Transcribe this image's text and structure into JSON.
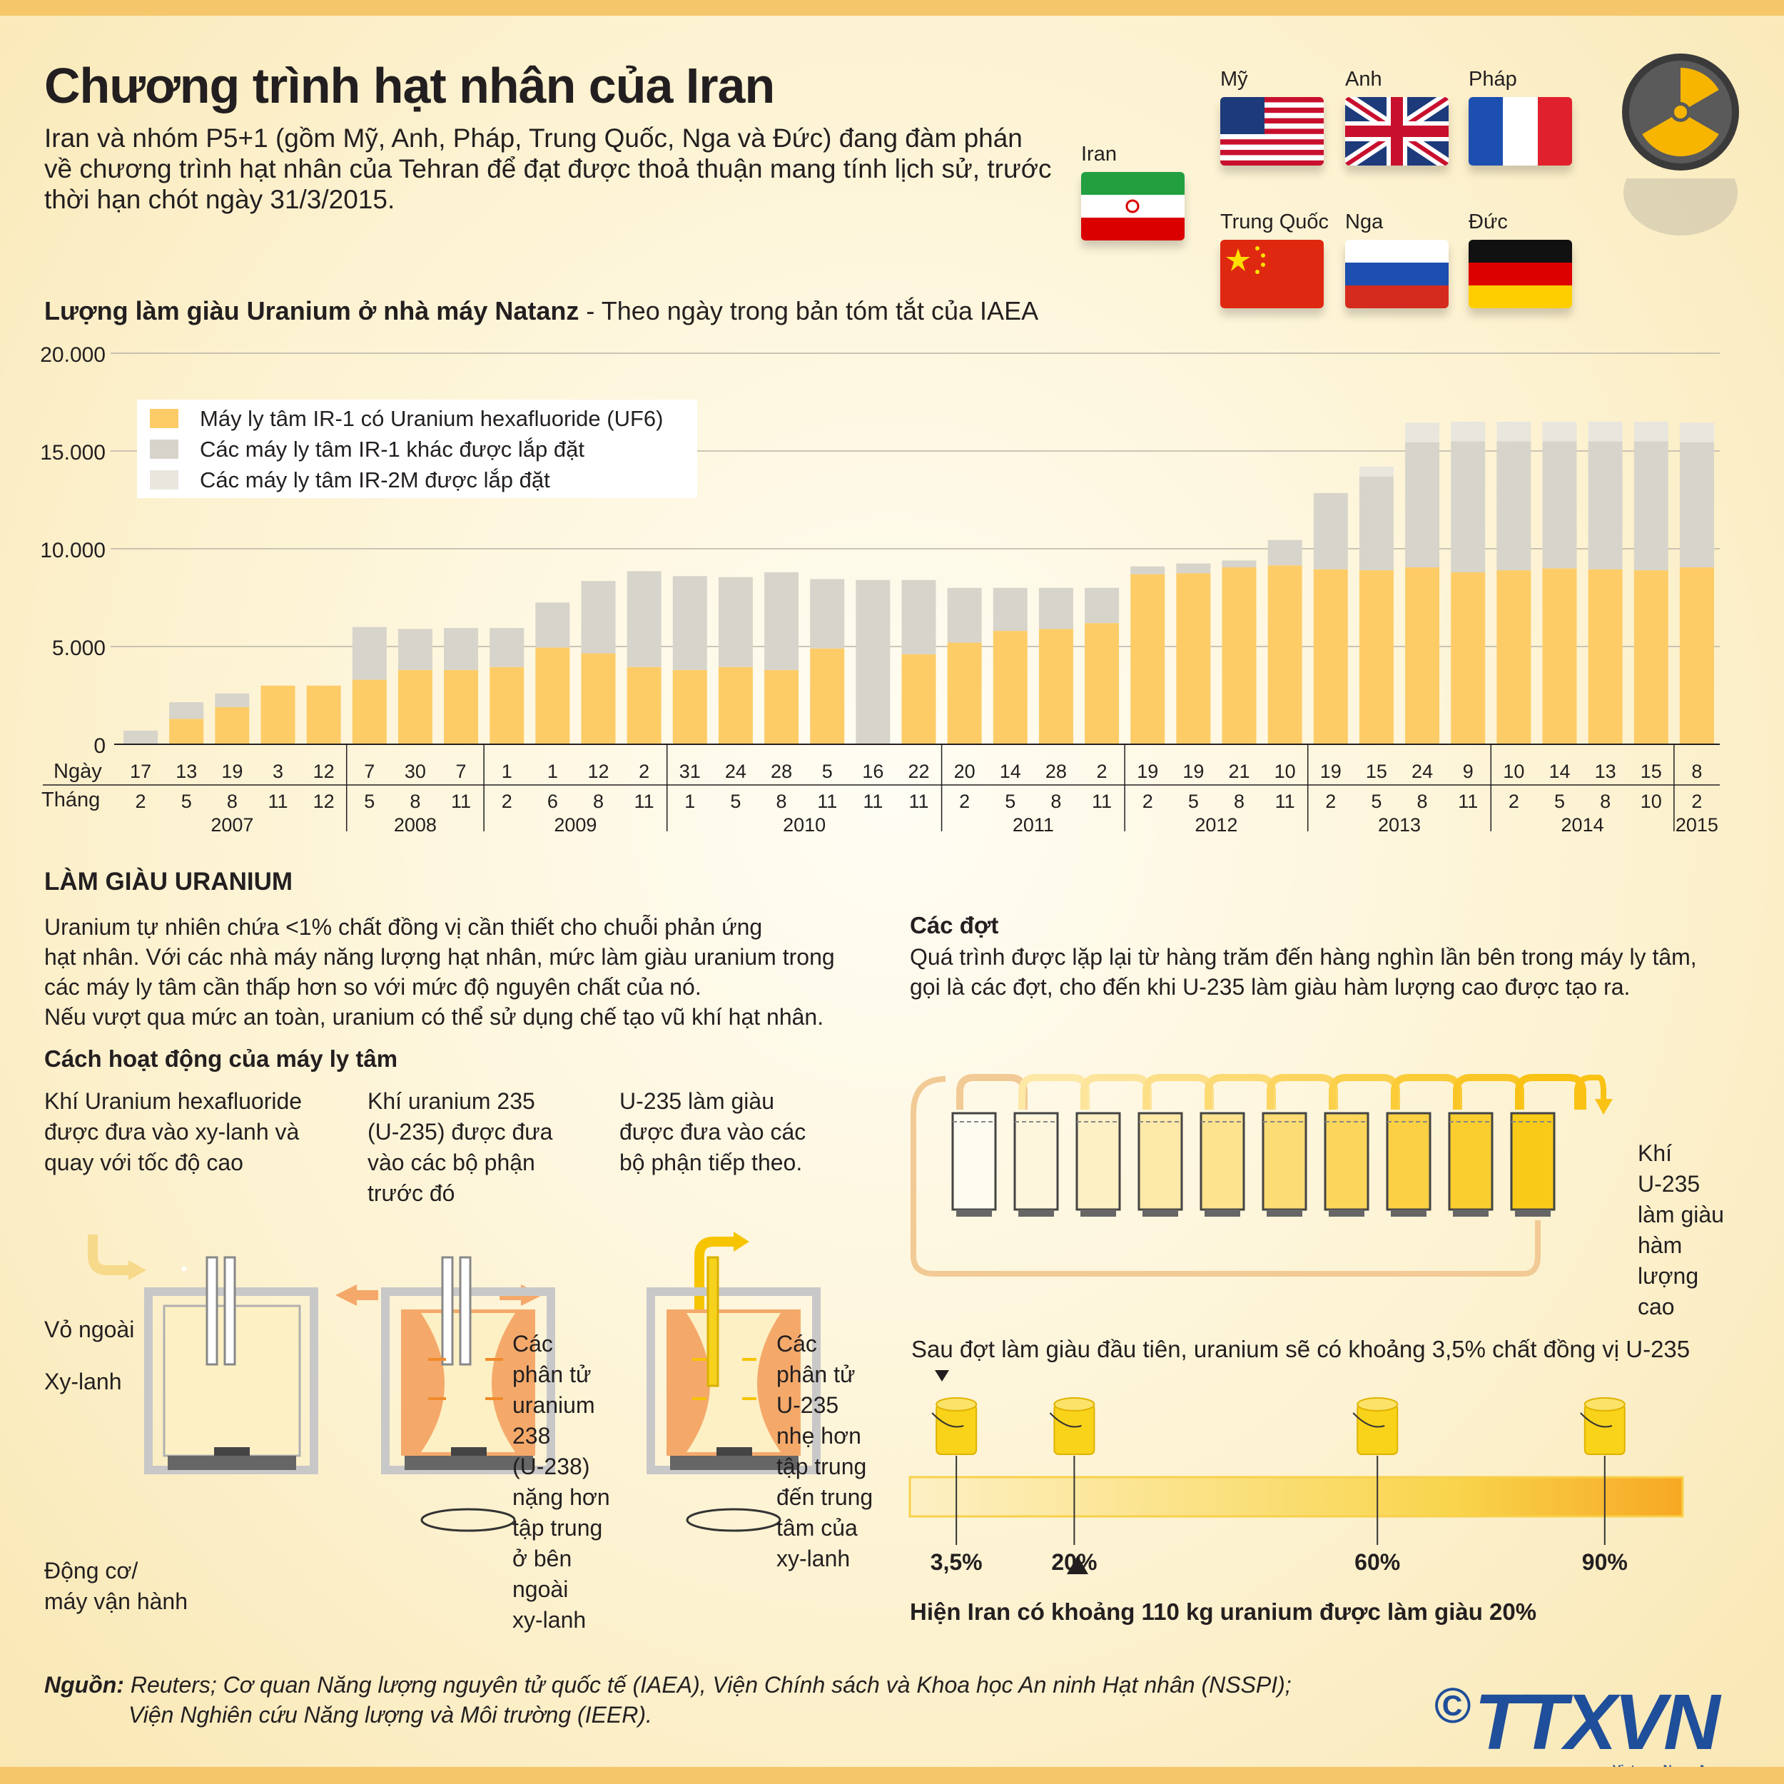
{
  "header": {
    "title": "Chương trình hạt nhân của Iran",
    "intro": "Iran và nhóm P5+1 (gồm Mỹ, Anh, Pháp, Trung Quốc, Nga và Đức) đang đàm phán về chương trình hạt nhân của Tehran để đạt được thoả thuận mang tính lịch sử, trước thời hạn chót ngày 31/3/2015."
  },
  "flags": {
    "iran": "Iran",
    "us": "Mỹ",
    "uk": "Anh",
    "france": "Pháp",
    "china": "Trung Quốc",
    "russia": "Nga",
    "germany": "Đức"
  },
  "chart_heading": {
    "bold": "Lượng làm giàu Uranium ở nhà máy Natanz",
    "rest": " - Theo ngày trong bản tóm tắt của IAEA"
  },
  "chart_data": {
    "type": "bar",
    "stacked": true,
    "ylim": [
      0,
      20000
    ],
    "yticks": [
      "20.000",
      "15.000",
      "10.000",
      "5.000",
      "0"
    ],
    "ytick_values": [
      20000,
      15000,
      10000,
      5000,
      0
    ],
    "row_labels": {
      "day": "Ngày",
      "month": "Tháng"
    },
    "days": [
      "17",
      "13",
      "19",
      "3",
      "12",
      "7",
      "30",
      "7",
      "1",
      "1",
      "12",
      "2",
      "31",
      "24",
      "28",
      "5",
      "16",
      "22",
      "20",
      "14",
      "28",
      "2",
      "19",
      "19",
      "21",
      "10",
      "19",
      "15",
      "24",
      "9",
      "10",
      "14",
      "13",
      "15",
      "8"
    ],
    "months": [
      "2",
      "5",
      "8",
      "11",
      "12",
      "5",
      "8",
      "11",
      "2",
      "6",
      "8",
      "11",
      "1",
      "5",
      "8",
      "11",
      "11",
      "11",
      "2",
      "5",
      "8",
      "11",
      "2",
      "5",
      "8",
      "11",
      "2",
      "5",
      "8",
      "11",
      "2",
      "5",
      "8",
      "10",
      "2"
    ],
    "years": [
      {
        "label": "2007",
        "count": 5
      },
      {
        "label": "2008",
        "count": 3
      },
      {
        "label": "2009",
        "count": 4
      },
      {
        "label": "2010",
        "count": 6
      },
      {
        "label": "2011",
        "count": 4
      },
      {
        "label": "2012",
        "count": 4
      },
      {
        "label": "2013",
        "count": 4
      },
      {
        "label": "2014",
        "count": 4
      },
      {
        "label": "2015",
        "count": 1
      }
    ],
    "series": [
      {
        "name": "Máy ly tâm IR-1 có Uranium hexafluoride (UF6)",
        "color": "#fdcc67",
        "values": [
          0,
          1300,
          1900,
          3000,
          3000,
          3300,
          3800,
          3800,
          3950,
          4950,
          4650,
          3950,
          3800,
          3950,
          3800,
          4900,
          0,
          4600,
          5200,
          5800,
          5900,
          6200,
          8700,
          8750,
          9050,
          9150,
          8950,
          8900,
          9050,
          8800,
          8900,
          9000,
          8950,
          8900,
          9050
        ]
      },
      {
        "name": "Các máy ly tâm IR-1 khác được lắp đặt",
        "color": "#d7d4cb",
        "values": [
          700,
          850,
          700,
          0,
          0,
          2700,
          2100,
          2150,
          2000,
          2300,
          3700,
          4900,
          4800,
          4600,
          5000,
          3550,
          8400,
          3800,
          2800,
          2200,
          2100,
          1800,
          400,
          500,
          350,
          1300,
          3900,
          4800,
          6400,
          6700,
          6600,
          6500,
          6550,
          6600,
          6400
        ]
      },
      {
        "name": "Các máy ly tâm IR-2M được lắp đặt",
        "color": "#e9e6de",
        "values": [
          0,
          0,
          0,
          0,
          0,
          0,
          0,
          0,
          0,
          0,
          0,
          0,
          0,
          0,
          0,
          0,
          0,
          0,
          0,
          0,
          0,
          0,
          0,
          0,
          0,
          0,
          0,
          500,
          1000,
          1000,
          1000,
          1000,
          1000,
          1000,
          1000
        ]
      }
    ]
  },
  "enrich": {
    "title": "LÀM GIÀU URANIUM",
    "body": [
      "Uranium tự nhiên chứa <1% chất đồng vị cần thiết cho chuỗi phản ứng",
      "hạt nhân. Với các nhà máy năng lượng hạt nhân, mức làm giàu uranium trong",
      "các máy ly tâm cần thấp hơn so với mức độ nguyên chất của nó.",
      "Nếu vượt qua mức an toàn, uranium có thể sử dụng chế tạo vũ khí hạt nhân."
    ],
    "how_title": "Cách hoạt động của máy ly tâm",
    "step1": [
      "Khí Uranium hexafluoride",
      "được đưa vào xy-lanh và",
      "quay với tốc độ cao"
    ],
    "step2": [
      "Khí uranium 235",
      "(U-235) được đưa",
      "vào các bộ phận",
      "trước đó"
    ],
    "step3": [
      "U-235 làm giàu",
      "được đưa vào các",
      "bộ phận tiếp theo."
    ],
    "labels": {
      "outer": "Vỏ ngoài",
      "cylinder": "Xy-lanh",
      "motor": [
        "Động cơ/",
        "máy vận hành"
      ]
    },
    "note_u238": [
      "Các",
      "phân tử",
      "uranium",
      "238",
      "(U-238)",
      "nặng hơn",
      "tập trung",
      "ở bên",
      "ngoài",
      "xy-lanh"
    ],
    "note_u235": [
      "Các",
      "phân tử",
      "U-235",
      "nhẹ hơn",
      "tập trung",
      "đến trung",
      "tâm của",
      "xy-lanh"
    ]
  },
  "cascade": {
    "title": "Các đợt",
    "body": [
      "Quá trình được lặp lại từ hàng trăm đến hàng nghìn lần bên trong máy ly tâm,",
      "gọi là các đợt, cho đến khi U-235 làm giàu hàm lượng cao được tạo ra."
    ],
    "gas_label": [
      "Khí",
      "U-235",
      "làm giàu",
      "hàm",
      "lượng",
      "cao"
    ],
    "first_pass": "Sau đợt làm giàu đầu tiên, uranium sẽ có khoảng 3,5% chất đồng vị U-235",
    "levels": [
      {
        "label": "3,5%",
        "value": 3.5
      },
      {
        "label": "20%",
        "value": 20
      },
      {
        "label": "60%",
        "value": 60
      },
      {
        "label": "90%",
        "value": 90
      }
    ],
    "current": "Hiện Iran có khoảng 110 kg uranium được làm giàu 20%"
  },
  "footer": {
    "source_label": "Nguồn:",
    "source_line1": " Reuters; Cơ quan Năng lượng nguyên tử quốc tế (IAEA), Viện Chính sách và Khoa học An ninh Hạt nhân (NSSPI);",
    "source_line2": "Viện Nghiên cứu Năng lượng và Môi trường (IEER).",
    "copyright": "©",
    "logo": "TTXVN",
    "logo_sub": "Vietnam News Agency"
  }
}
